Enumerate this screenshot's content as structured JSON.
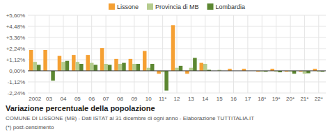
{
  "chart_data": {
    "type": "bar",
    "title": "Variazione percentuale della popolazione",
    "subtitle": "COMUNE DI LISSONE (MB) - Dati ISTAT al 31 dicembre di ogni anno - Elaborazione TUTTITALIA.IT",
    "footnote": "(*) post-censimento",
    "categories": [
      "2002",
      "03",
      "04",
      "05",
      "06",
      "07",
      "08",
      "09",
      "10",
      "11*",
      "12",
      "13",
      "14",
      "15",
      "16",
      "17",
      "18*",
      "19*",
      "20*",
      "21*",
      "22*"
    ],
    "series": [
      {
        "name": "Lissone",
        "color": "#F5A033",
        "values": [
          2.1,
          2.1,
          1.5,
          1.6,
          1.6,
          2.3,
          1.2,
          1.2,
          2.0,
          -0.3,
          4.6,
          -0.3,
          0.8,
          0.0,
          0.2,
          0.2,
          -0.1,
          0.2,
          -0.1,
          -0.1,
          0.2
        ]
      },
      {
        "name": "Provincia di MB",
        "color": "#B5CC8E",
        "values": [
          0.9,
          0.0,
          0.9,
          0.9,
          0.8,
          0.7,
          0.7,
          0.7,
          0.3,
          -0.15,
          0.3,
          0.3,
          0.7,
          0.1,
          0.0,
          0.0,
          -0.1,
          -0.1,
          -0.1,
          -0.3,
          -0.1
        ]
      },
      {
        "name": "Lombardia",
        "color": "#5C8731",
        "values": [
          0.6,
          -1.0,
          1.0,
          0.7,
          0.6,
          0.6,
          0.8,
          0.7,
          0.7,
          -2.0,
          0.5,
          1.3,
          0.1,
          0.0,
          0.0,
          0.0,
          -0.1,
          -0.15,
          -0.3,
          -0.25,
          -0.1
        ]
      }
    ],
    "ylim": [
      -2.24,
      5.6
    ],
    "yticks": [
      {
        "value": -2.24,
        "label": "-2,24%"
      },
      {
        "value": -1.12,
        "label": "-1,12%"
      },
      {
        "value": 0.0,
        "label": "0,00%"
      },
      {
        "value": 1.12,
        "label": "+1,12%"
      },
      {
        "value": 2.24,
        "label": "+2,24%"
      },
      {
        "value": 3.36,
        "label": "+3,36%"
      },
      {
        "value": 4.48,
        "label": "+4,48%"
      },
      {
        "value": 5.6,
        "label": "+5,60%"
      }
    ],
    "grid": true,
    "legend": "top"
  }
}
